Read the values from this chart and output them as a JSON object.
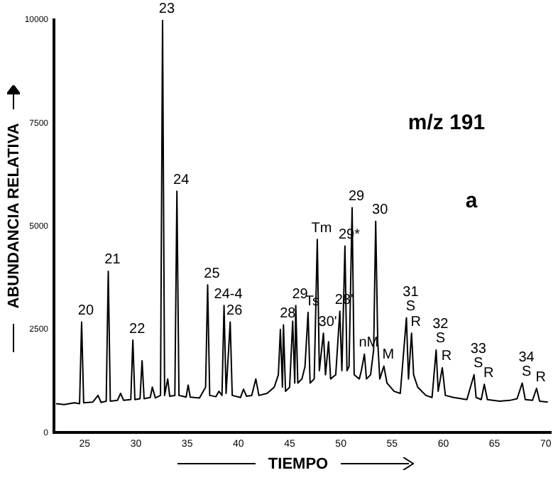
{
  "chart_data": {
    "type": "line",
    "xlabel": "TIEMPO",
    "ylabel": "ABUNDANCIA RELATIVA",
    "xlim": [
      22,
      70.5
    ],
    "ylim": [
      0,
      10000
    ],
    "xticks": [
      25,
      30,
      35,
      40,
      45,
      50,
      55,
      60,
      65,
      70
    ],
    "yticks": [
      0,
      2500,
      5000,
      7500,
      10000
    ],
    "grid": false,
    "legend": false,
    "marker": "none",
    "line_style": "solid",
    "series": [
      {
        "color": "#000000",
        "x": [
          22.2,
          23,
          24,
          24.5,
          24.7,
          24.9,
          25.8,
          26.3,
          26.6,
          27.1,
          27.3,
          27.5,
          28.2,
          28.5,
          28.8,
          29.5,
          29.7,
          29.9,
          30.4,
          30.6,
          30.8,
          31.4,
          31.6,
          31.9,
          32.4,
          32.6,
          32.8,
          33.1,
          33.3,
          33.8,
          34.0,
          34.2,
          34.9,
          35.1,
          35.3,
          36.2,
          36.8,
          37.0,
          37.2,
          37.8,
          38.1,
          38.4,
          38.6,
          38.8,
          39.2,
          39.4,
          40.2,
          40.5,
          40.8,
          41.3,
          41.7,
          42,
          42.8,
          43.5,
          43.9,
          44.1,
          44.3,
          44.4,
          44.6,
          45.0,
          45.3,
          45.5,
          45.6,
          45.8,
          46.2,
          46.5,
          46.8,
          47.0,
          47.4,
          47.7,
          47.9,
          48.3,
          48.5,
          48.8,
          49.0,
          49.5,
          49.9,
          50.1,
          50.4,
          50.6,
          50.8,
          51.1,
          51.3,
          51.8,
          52.0,
          52.3,
          52.5,
          52.9,
          53.2,
          53.4,
          53.6,
          53.8,
          54.2,
          54.5,
          55.2,
          55.8,
          56.4,
          56.6,
          56.9,
          57.1,
          57.5,
          58.3,
          58.9,
          59.3,
          59.5,
          59.9,
          60.2,
          61,
          62.3,
          63.0,
          63.2,
          63.7,
          64.0,
          64.3,
          65.5,
          66.5,
          67.2,
          67.7,
          68,
          68.7,
          69.1,
          69.4,
          70.2
        ],
        "values": [
          700,
          680,
          720,
          700,
          2680,
          720,
          740,
          900,
          730,
          760,
          3910,
          760,
          780,
          950,
          780,
          800,
          2240,
          800,
          820,
          1740,
          820,
          850,
          1100,
          840,
          900,
          10000,
          900,
          1300,
          880,
          900,
          5850,
          900,
          860,
          1150,
          860,
          840,
          1100,
          3580,
          900,
          870,
          1000,
          900,
          3080,
          950,
          2680,
          900,
          850,
          1050,
          880,
          900,
          1300,
          900,
          950,
          1100,
          1400,
          2500,
          1100,
          2610,
          1000,
          1100,
          2700,
          1200,
          3080,
          1200,
          1300,
          1600,
          2910,
          1200,
          1300,
          4680,
          1500,
          2410,
          1400,
          2200,
          1300,
          1400,
          2940,
          1500,
          4520,
          1500,
          1600,
          5450,
          1400,
          1300,
          1500,
          1900,
          1300,
          1400,
          2000,
          5120,
          2200,
          1300,
          1610,
          1200,
          1000,
          950,
          2780,
          1300,
          2410,
          1400,
          1100,
          900,
          850,
          2000,
          1000,
          1570,
          900,
          850,
          800,
          1400,
          850,
          800,
          1170,
          800,
          760,
          780,
          820,
          1200,
          800,
          780,
          1070,
          760,
          740
        ]
      }
    ],
    "annotations": [
      "m/z 191",
      "a",
      {
        "text": "20",
        "x": 24.7,
        "y": 2680
      },
      {
        "text": "21",
        "x": 27.3,
        "y": 3910
      },
      {
        "text": "22",
        "x": 29.7,
        "y": 2240
      },
      {
        "text": "23",
        "x": 32.6,
        "y": 10000
      },
      {
        "text": "24",
        "x": 34.0,
        "y": 5850
      },
      {
        "text": "25",
        "x": 37.0,
        "y": 3580
      },
      {
        "text": "24-4",
        "x": 38.6,
        "y": 3080
      },
      {
        "text": "26",
        "x": 39.2,
        "y": 2680
      },
      {
        "text": "28",
        "x": 44.4,
        "y": 2610
      },
      {
        "text": "29",
        "x": 45.6,
        "y": 3080
      },
      {
        "text": "Ts",
        "x": 46.8,
        "y": 2910
      },
      {
        "text": "Tm",
        "x": 47.7,
        "y": 4680
      },
      {
        "text": "30'",
        "x": 48.3,
        "y": 2410
      },
      {
        "text": "28'",
        "x": 49.9,
        "y": 2940
      },
      {
        "text": "29*",
        "x": 50.4,
        "y": 4520
      },
      {
        "text": "29",
        "x": 51.1,
        "y": 5450
      },
      {
        "text": "nM",
        "x": 52.3,
        "y": 1900
      },
      {
        "text": "30",
        "x": 53.4,
        "y": 5120
      },
      {
        "text": "M",
        "x": 54.2,
        "y": 1610
      },
      {
        "text": "S",
        "x": 56.4,
        "y": 2780
      },
      {
        "text": "31",
        "x": 56.4,
        "y": 2780
      },
      {
        "text": "R",
        "x": 56.9,
        "y": 2410
      },
      {
        "text": "S",
        "x": 59.3,
        "y": 2000
      },
      {
        "text": "32",
        "x": 59.3,
        "y": 2000
      },
      {
        "text": "R",
        "x": 59.9,
        "y": 1570
      },
      {
        "text": "S",
        "x": 63.0,
        "y": 1400
      },
      {
        "text": "33",
        "x": 63.0,
        "y": 1400
      },
      {
        "text": "R",
        "x": 64.0,
        "y": 1170
      },
      {
        "text": "S",
        "x": 67.7,
        "y": 1200
      },
      {
        "text": "34",
        "x": 67.7,
        "y": 1200
      },
      {
        "text": "R",
        "x": 69.1,
        "y": 1070
      }
    ]
  }
}
